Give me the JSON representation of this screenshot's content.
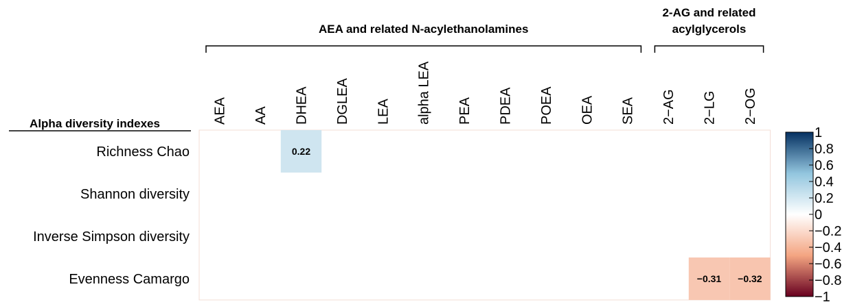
{
  "chart_data": {
    "type": "heatmap",
    "rows_title": "Alpha diversity indexes",
    "rows": [
      "Richness Chao",
      "Shannon diversity",
      "Inverse Simpson diversity",
      "Evenness Camargo"
    ],
    "columns": [
      "AEA",
      "AA",
      "DHEA",
      "DGLEA",
      "LEA",
      "alpha LEA",
      "PEA",
      "PDEA",
      "POEA",
      "OEA",
      "SEA",
      "2−AG",
      "2−LG",
      "2−OG"
    ],
    "groups": [
      {
        "title_lines": [
          "AEA and related N-acylethanolamines"
        ],
        "start": 0,
        "end": 10
      },
      {
        "title_lines": [
          "2-AG and related",
          "acylglycerols"
        ],
        "start": 11,
        "end": 13
      }
    ],
    "values": [
      [
        0,
        0,
        0.22,
        0,
        0,
        0,
        0,
        0,
        0,
        0,
        0,
        0,
        0,
        0
      ],
      [
        0,
        0,
        0,
        0,
        0,
        0,
        0,
        0,
        0,
        0,
        0,
        0,
        0,
        0
      ],
      [
        0,
        0,
        0,
        0,
        0,
        0,
        0,
        0,
        0,
        0,
        0,
        0,
        0,
        0
      ],
      [
        0,
        0,
        0,
        0,
        0,
        0,
        0,
        0,
        0,
        0,
        0,
        0,
        -0.31,
        -0.32
      ]
    ],
    "cell_labels": [
      {
        "row": 0,
        "col": 2,
        "text": "0.22"
      },
      {
        "row": 3,
        "col": 12,
        "text": "−0.31"
      },
      {
        "row": 3,
        "col": 13,
        "text": "−0.32"
      }
    ],
    "colorbar": {
      "range": [
        -1,
        1
      ],
      "ticks": [
        "1",
        "0.8",
        "0.6",
        "0.4",
        "0.2",
        "0",
        "−0.2",
        "−0.4",
        "−0.6",
        "−0.8",
        "−1"
      ],
      "colors": {
        "negative": "#67001f",
        "mid": "#ffffff",
        "positive": "#053061"
      }
    }
  }
}
